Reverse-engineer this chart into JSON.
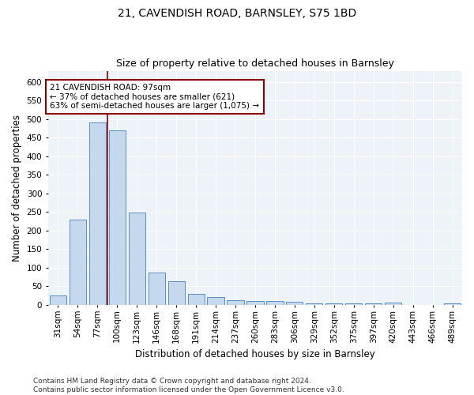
{
  "title": "21, CAVENDISH ROAD, BARNSLEY, S75 1BD",
  "subtitle": "Size of property relative to detached houses in Barnsley",
  "xlabel": "Distribution of detached houses by size in Barnsley",
  "ylabel": "Number of detached properties",
  "categories": [
    "31sqm",
    "54sqm",
    "77sqm",
    "100sqm",
    "123sqm",
    "146sqm",
    "168sqm",
    "191sqm",
    "214sqm",
    "237sqm",
    "260sqm",
    "283sqm",
    "306sqm",
    "329sqm",
    "352sqm",
    "375sqm",
    "397sqm",
    "420sqm",
    "443sqm",
    "466sqm",
    "489sqm"
  ],
  "values": [
    25,
    230,
    490,
    470,
    248,
    88,
    63,
    30,
    22,
    13,
    10,
    10,
    8,
    5,
    5,
    4,
    5,
    7,
    0,
    0,
    5
  ],
  "bar_color": "#c5d8ed",
  "bar_edge_color": "#5a8fc3",
  "property_line_x": 2.5,
  "property_line_color": "#8b0000",
  "annotation_line1": "21 CAVENDISH ROAD: 97sqm",
  "annotation_line2": "← 37% of detached houses are smaller (621)",
  "annotation_line3": "63% of semi-detached houses are larger (1,075) →",
  "annotation_box_color": "#8b0000",
  "footer_line1": "Contains HM Land Registry data © Crown copyright and database right 2024.",
  "footer_line2": "Contains public sector information licensed under the Open Government Licence v3.0.",
  "ylim": [
    0,
    630
  ],
  "yticks": [
    0,
    50,
    100,
    150,
    200,
    250,
    300,
    350,
    400,
    450,
    500,
    550,
    600
  ],
  "background_color": "#eef2f9",
  "grid_color": "#ffffff",
  "title_fontsize": 10,
  "subtitle_fontsize": 9,
  "axis_label_fontsize": 8.5,
  "tick_fontsize": 7.5,
  "annotation_fontsize": 7.5,
  "footer_fontsize": 6.5
}
